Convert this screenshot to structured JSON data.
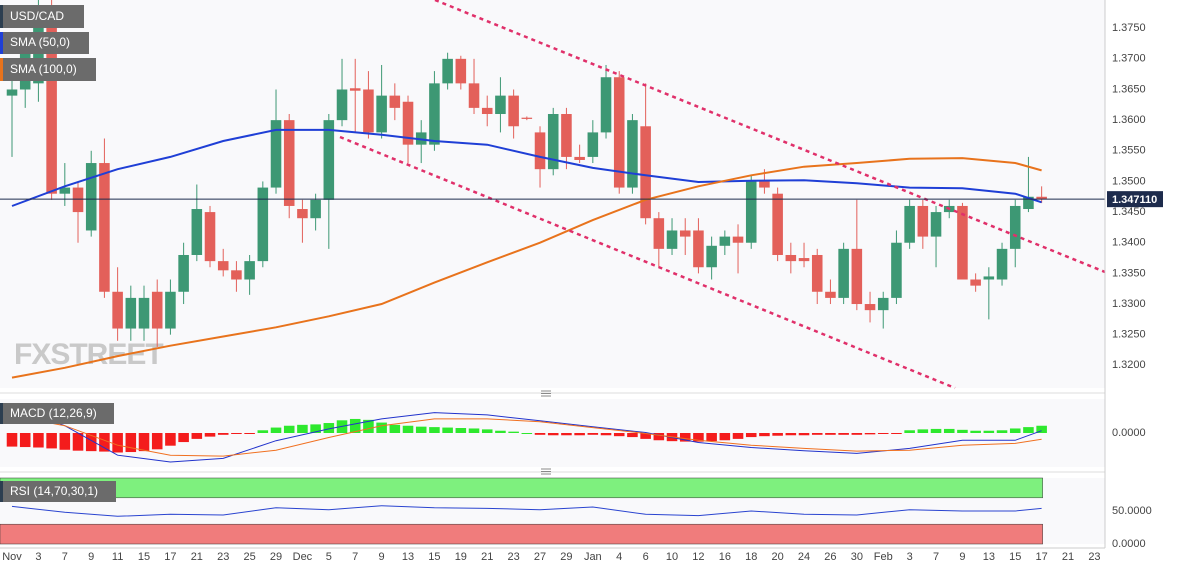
{
  "chart_data": [
    {
      "type": "candlestick",
      "title": "USD/CAD",
      "watermark": "FXSTREET",
      "up_color": "#3d9874",
      "down_color": "#e3605a",
      "xlim": [
        -0.91,
        82.8
      ],
      "xticks": [
        {
          "value": 0,
          "label": "Nov"
        },
        {
          "value": 2,
          "label": "3"
        },
        {
          "value": 4,
          "label": "7"
        },
        {
          "value": 6,
          "label": "9"
        },
        {
          "value": 8,
          "label": "11"
        },
        {
          "value": 10,
          "label": "15"
        },
        {
          "value": 12,
          "label": "17"
        },
        {
          "value": 14,
          "label": "21"
        },
        {
          "value": 16,
          "label": "23"
        },
        {
          "value": 18,
          "label": "25"
        },
        {
          "value": 20,
          "label": "29"
        },
        {
          "value": 22,
          "label": "Dec"
        },
        {
          "value": 24,
          "label": "5"
        },
        {
          "value": 26,
          "label": "7"
        },
        {
          "value": 28,
          "label": "9"
        },
        {
          "value": 30,
          "label": "13"
        },
        {
          "value": 32,
          "label": "15"
        },
        {
          "value": 34,
          "label": "19"
        },
        {
          "value": 36,
          "label": "21"
        },
        {
          "value": 38,
          "label": "23"
        },
        {
          "value": 40,
          "label": "27"
        },
        {
          "value": 42,
          "label": "29"
        },
        {
          "value": 44,
          "label": "Jan"
        },
        {
          "value": 46,
          "label": "4"
        },
        {
          "value": 48,
          "label": "6"
        },
        {
          "value": 50,
          "label": "10"
        },
        {
          "value": 52,
          "label": "12"
        },
        {
          "value": 54,
          "label": "16"
        },
        {
          "value": 56,
          "label": "18"
        },
        {
          "value": 58,
          "label": "20"
        },
        {
          "value": 60,
          "label": "24"
        },
        {
          "value": 62,
          "label": "26"
        },
        {
          "value": 64,
          "label": "30"
        },
        {
          "value": 66,
          "label": "Feb"
        },
        {
          "value": 68,
          "label": "3"
        },
        {
          "value": 70,
          "label": "7"
        },
        {
          "value": 72,
          "label": "9"
        },
        {
          "value": 74,
          "label": "13"
        },
        {
          "value": 76,
          "label": "15"
        },
        {
          "value": 78,
          "label": "17"
        },
        {
          "value": 80,
          "label": "21"
        },
        {
          "value": 82,
          "label": "23"
        }
      ],
      "ylim": [
        1.3163,
        1.3796
      ],
      "yticks": [
        {
          "value": 1.32,
          "label": "1.3200"
        },
        {
          "value": 1.325,
          "label": "1.3250"
        },
        {
          "value": 1.33,
          "label": "1.3300"
        },
        {
          "value": 1.335,
          "label": "1.3350"
        },
        {
          "value": 1.34,
          "label": "1.3400"
        },
        {
          "value": 1.345,
          "label": "1.3450"
        },
        {
          "value": 1.35,
          "label": "1.3500"
        },
        {
          "value": 1.355,
          "label": "1.3550"
        },
        {
          "value": 1.36,
          "label": "1.3600"
        },
        {
          "value": 1.365,
          "label": "1.3650"
        },
        {
          "value": 1.37,
          "label": "1.3700"
        },
        {
          "value": 1.375,
          "label": "1.3750"
        }
      ],
      "grid": true,
      "last_price": {
        "value": 1.34711,
        "label": "1.347110"
      },
      "open": [
        1.364,
        1.365,
        1.366,
        1.377,
        1.348,
        1.349,
        1.342,
        1.353,
        1.332,
        1.326,
        1.326,
        1.332,
        1.326,
        1.332,
        1.338,
        1.345,
        1.337,
        1.3355,
        1.334,
        1.337,
        1.349,
        1.36,
        1.3455,
        1.344,
        1.347,
        1.36,
        1.3652,
        1.365,
        1.358,
        1.364,
        1.363,
        1.356,
        1.356,
        1.366,
        1.37,
        1.366,
        1.362,
        1.361,
        1.364,
        1.3604,
        1.358,
        1.352,
        1.361,
        1.354,
        1.354,
        1.358,
        1.367,
        1.349,
        1.359,
        1.344,
        1.339,
        1.342,
        1.342,
        1.336,
        1.3395,
        1.341,
        1.34,
        1.35,
        1.348,
        1.338,
        1.3375,
        1.338,
        1.332,
        1.331,
        1.339,
        1.33,
        1.329,
        1.331,
        1.34,
        1.346,
        1.341,
        1.345,
        1.346,
        1.334,
        1.334,
        1.334,
        1.339,
        1.3455,
        1.3475
      ],
      "high": [
        1.37,
        1.374,
        1.3808,
        1.38,
        1.353,
        1.35,
        1.355,
        1.357,
        1.336,
        1.333,
        1.333,
        1.334,
        1.334,
        1.34,
        1.3495,
        1.346,
        1.339,
        1.337,
        1.338,
        1.35,
        1.365,
        1.361,
        1.347,
        1.348,
        1.361,
        1.37,
        1.37,
        1.368,
        1.369,
        1.366,
        1.364,
        1.36,
        1.368,
        1.371,
        1.3705,
        1.37,
        1.364,
        1.367,
        1.365,
        1.3606,
        1.359,
        1.362,
        1.362,
        1.356,
        1.36,
        1.369,
        1.368,
        1.361,
        1.366,
        1.345,
        1.344,
        1.344,
        1.344,
        1.341,
        1.342,
        1.343,
        1.351,
        1.352,
        1.349,
        1.34,
        1.34,
        1.339,
        1.334,
        1.34,
        1.347,
        1.332,
        1.332,
        1.342,
        1.347,
        1.347,
        1.346,
        1.347,
        1.3465,
        1.335,
        1.336,
        1.34,
        1.347,
        1.354,
        1.3492
      ],
      "low": [
        1.354,
        1.362,
        1.363,
        1.347,
        1.346,
        1.34,
        1.341,
        1.331,
        1.324,
        1.324,
        1.324,
        1.323,
        1.325,
        1.33,
        1.337,
        1.336,
        1.3345,
        1.332,
        1.3315,
        1.336,
        1.348,
        1.344,
        1.34,
        1.342,
        1.339,
        1.359,
        1.358,
        1.357,
        1.357,
        1.36,
        1.353,
        1.353,
        1.355,
        1.365,
        1.365,
        1.361,
        1.359,
        1.358,
        1.357,
        1.36,
        1.349,
        1.351,
        1.352,
        1.353,
        1.353,
        1.357,
        1.348,
        1.348,
        1.343,
        1.336,
        1.338,
        1.338,
        1.335,
        1.334,
        1.338,
        1.335,
        1.339,
        1.348,
        1.337,
        1.335,
        1.336,
        1.33,
        1.33,
        1.33,
        1.329,
        1.327,
        1.326,
        1.33,
        1.339,
        1.339,
        1.336,
        1.344,
        1.334,
        1.332,
        1.3275,
        1.333,
        1.336,
        1.345,
        1.3465
      ],
      "close": [
        1.365,
        1.372,
        1.378,
        1.348,
        1.349,
        1.345,
        1.353,
        1.332,
        1.326,
        1.331,
        1.331,
        1.326,
        1.332,
        1.338,
        1.3455,
        1.337,
        1.3355,
        1.334,
        1.337,
        1.349,
        1.36,
        1.346,
        1.344,
        1.347,
        1.36,
        1.365,
        1.3648,
        1.358,
        1.364,
        1.362,
        1.356,
        1.358,
        1.366,
        1.37,
        1.366,
        1.362,
        1.361,
        1.364,
        1.359,
        1.3602,
        1.352,
        1.361,
        1.354,
        1.3535,
        1.358,
        1.367,
        1.349,
        1.36,
        1.344,
        1.339,
        1.342,
        1.341,
        1.336,
        1.3395,
        1.341,
        1.34,
        1.35,
        1.349,
        1.338,
        1.337,
        1.337,
        1.332,
        1.331,
        1.339,
        1.33,
        1.329,
        1.331,
        1.34,
        1.346,
        1.341,
        1.345,
        1.346,
        1.334,
        1.333,
        1.3345,
        1.339,
        1.346,
        1.3475,
        1.34711
      ],
      "series": [
        {
          "name": "SMA (50,0)",
          "color": "#1f3fd6",
          "x": [
            0,
            4,
            8,
            12,
            16,
            20,
            24,
            28,
            32,
            36,
            40,
            44,
            48,
            52,
            56,
            60,
            64,
            68,
            72,
            76,
            78
          ],
          "values": [
            1.346,
            1.3492,
            1.352,
            1.354,
            1.3566,
            1.3584,
            1.3584,
            1.3576,
            1.3566,
            1.356,
            1.354,
            1.3522,
            1.351,
            1.3499,
            1.3501,
            1.3502,
            1.3497,
            1.349,
            1.3489,
            1.348,
            1.3466
          ]
        },
        {
          "name": "SMA (100,0)",
          "color": "#e8731c",
          "x": [
            0,
            4,
            8,
            12,
            16,
            20,
            24,
            28,
            32,
            36,
            40,
            44,
            48,
            52,
            56,
            60,
            64,
            68,
            72,
            76,
            78
          ],
          "values": [
            1.318,
            1.3196,
            1.3215,
            1.3232,
            1.3247,
            1.3262,
            1.328,
            1.33,
            1.3335,
            1.3368,
            1.34,
            1.3437,
            1.347,
            1.3492,
            1.351,
            1.3524,
            1.353,
            1.3537,
            1.3538,
            1.353,
            1.3518
          ]
        }
      ]
    },
    {
      "type": "macd",
      "title": "MACD (12,26,9)",
      "ylim": [
        -0.0075,
        0.0075
      ],
      "yticks": [
        {
          "value": 0,
          "label": "0.0000"
        }
      ],
      "up_color": "#2ee82e",
      "down_color": "#f41c1c",
      "histogram": [
        -0.003,
        -0.0031,
        -0.0032,
        -0.0034,
        -0.0037,
        -0.0039,
        -0.004,
        -0.0041,
        -0.0043,
        -0.0042,
        -0.004,
        -0.0036,
        -0.0028,
        -0.002,
        -0.0013,
        -0.0008,
        -0.0004,
        -0.0002,
        -0.0001,
        0.0006,
        0.0012,
        0.0016,
        0.0018,
        0.0019,
        0.0022,
        0.0028,
        0.0031,
        0.0029,
        0.0023,
        0.0018,
        0.0016,
        0.0014,
        0.0013,
        0.0012,
        0.0011,
        0.001,
        0.0008,
        0.0005,
        0.0003,
        0.0,
        -0.0004,
        -0.0005,
        -0.0005,
        -0.0005,
        -0.0004,
        -0.0005,
        -0.0007,
        -0.0009,
        -0.0013,
        -0.0016,
        -0.0018,
        -0.0019,
        -0.0019,
        -0.0018,
        -0.0016,
        -0.0013,
        -0.0009,
        -0.0007,
        -0.0006,
        -0.0005,
        -0.0005,
        -0.0004,
        -0.0004,
        -0.0004,
        -0.0004,
        -0.0003,
        -0.0002,
        -0.0001,
        0.0006,
        0.0008,
        0.0009,
        0.0009,
        0.0007,
        0.0005,
        0.0005,
        0.0006,
        0.001,
        0.0013,
        0.0016
      ],
      "series": [
        {
          "color": "#2233cc",
          "x": [
            0,
            4,
            8,
            12,
            16,
            20,
            24,
            28,
            32,
            36,
            40,
            44,
            48,
            52,
            56,
            60,
            64,
            68,
            72,
            76,
            78
          ],
          "values": [
            0.006,
            0.0016,
            -0.0049,
            -0.0064,
            -0.0056,
            -0.0017,
            0.0009,
            0.0031,
            0.0045,
            0.004,
            0.0027,
            0.0014,
            0.0001,
            -0.0021,
            -0.0032,
            -0.0039,
            -0.0045,
            -0.0034,
            -0.0016,
            -0.0016,
            0.0005
          ]
        },
        {
          "color": "#f07020",
          "x": [
            0,
            4,
            8,
            12,
            16,
            20,
            24,
            28,
            32,
            36,
            40,
            44,
            48,
            52,
            56,
            60,
            64,
            68,
            72,
            76,
            78
          ],
          "values": [
            0.0038,
            0.0016,
            -0.0027,
            -0.0049,
            -0.0051,
            -0.0038,
            -0.001,
            0.0016,
            0.0031,
            0.0031,
            0.0025,
            0.0012,
            -0.0001,
            -0.0016,
            -0.0027,
            -0.0034,
            -0.004,
            -0.0038,
            -0.0027,
            -0.0023,
            -0.0014
          ]
        }
      ]
    },
    {
      "type": "rsi",
      "title": "RSI (14,70,30,1)",
      "ylim": [
        0,
        100
      ],
      "yticks": [
        {
          "value": 50,
          "label": "50.0000"
        },
        {
          "value": 0,
          "label": "0.0000"
        }
      ],
      "overbought": 70,
      "oversold": 30,
      "overbought_color": "#7ef07e",
      "oversold_color": "#f07c7c",
      "series": [
        {
          "color": "#2a44d0",
          "x": [
            0,
            4,
            8,
            12,
            16,
            20,
            24,
            28,
            32,
            36,
            40,
            44,
            48,
            52,
            56,
            60,
            64,
            68,
            72,
            76,
            78
          ],
          "values": [
            57,
            48,
            42,
            45,
            44,
            55,
            52,
            58,
            55,
            54,
            52,
            56,
            45,
            43,
            50,
            45,
            44,
            52,
            50,
            50,
            54
          ]
        }
      ]
    }
  ]
}
